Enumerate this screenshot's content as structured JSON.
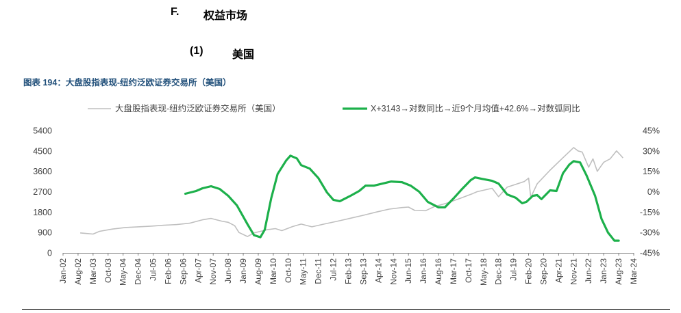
{
  "sections": {
    "s1_number": "F.",
    "s1_title": "权益市场",
    "s2_number": "(1)",
    "s2_title": "美国"
  },
  "figure_title": "图表 194：大盘股指表现-纽约泛欧证券交易所（美国）",
  "colors": {
    "index_series": "#BFBFBF",
    "indicator_series": "#1DB04B",
    "title": "#1F4E79"
  },
  "chart_data": {
    "type": "line",
    "legend_position": "top",
    "grid": false,
    "x_ticks": [
      "Jan-02",
      "Aug-02",
      "Mar-03",
      "Oct-03",
      "May-04",
      "Dec-04",
      "Jul-05",
      "Feb-06",
      "Sep-06",
      "Apr-07",
      "Nov-07",
      "Jun-08",
      "Jan-09",
      "Aug-09",
      "Mar-10",
      "Oct-10",
      "May-11",
      "Dec-11",
      "Jul-12",
      "Feb-13",
      "Sep-13",
      "Apr-14",
      "Nov-14",
      "Jun-15",
      "Jan-16",
      "Aug-16",
      "Mar-17",
      "Oct-17",
      "May-18",
      "Dec-18",
      "Jul-19",
      "Feb-20",
      "Sep-20",
      "Apr-21",
      "Nov-21",
      "Jun-22",
      "Jan-23",
      "Aug-23",
      "Mar-24"
    ],
    "y_left": {
      "ticks": [
        "0",
        "900",
        "1800",
        "2700",
        "3600",
        "4500",
        "5400"
      ],
      "ylim": [
        0,
        5400
      ]
    },
    "y_right": {
      "ticks": [
        "-45%",
        "-30%",
        "-15%",
        "0%",
        "15%",
        "30%",
        "45%"
      ],
      "ylim": [
        -45,
        45
      ]
    },
    "series": [
      {
        "name": "大盘股指表现-纽约泛欧证券交易所（美国）",
        "axis": "left",
        "points": [
          [
            "2002-09",
            880
          ],
          [
            "2003-03",
            830
          ],
          [
            "2003-06",
            950
          ],
          [
            "2003-12",
            1050
          ],
          [
            "2004-06",
            1120
          ],
          [
            "2004-12",
            1150
          ],
          [
            "2005-06",
            1180
          ],
          [
            "2005-12",
            1220
          ],
          [
            "2006-06",
            1250
          ],
          [
            "2006-12",
            1310
          ],
          [
            "2007-06",
            1460
          ],
          [
            "2007-10",
            1520
          ],
          [
            "2008-03",
            1400
          ],
          [
            "2008-06",
            1350
          ],
          [
            "2008-09",
            1200
          ],
          [
            "2008-11",
            900
          ],
          [
            "2009-03",
            720
          ],
          [
            "2009-06",
            880
          ],
          [
            "2009-12",
            1020
          ],
          [
            "2010-04",
            1070
          ],
          [
            "2010-07",
            980
          ],
          [
            "2010-12",
            1160
          ],
          [
            "2011-04",
            1270
          ],
          [
            "2011-09",
            1150
          ],
          [
            "2012-03",
            1280
          ],
          [
            "2012-09",
            1400
          ],
          [
            "2013-03",
            1530
          ],
          [
            "2013-09",
            1660
          ],
          [
            "2014-03",
            1800
          ],
          [
            "2014-09",
            1930
          ],
          [
            "2015-03",
            2000
          ],
          [
            "2015-06",
            2020
          ],
          [
            "2015-09",
            1870
          ],
          [
            "2016-02",
            1860
          ],
          [
            "2016-06",
            2040
          ],
          [
            "2016-12",
            2200
          ],
          [
            "2017-06",
            2400
          ],
          [
            "2017-12",
            2620
          ],
          [
            "2018-02",
            2700
          ],
          [
            "2018-09",
            2850
          ],
          [
            "2018-12",
            2480
          ],
          [
            "2019-04",
            2900
          ],
          [
            "2019-12",
            3150
          ],
          [
            "2020-02",
            3300
          ],
          [
            "2020-03",
            2450
          ],
          [
            "2020-06",
            3050
          ],
          [
            "2020-12",
            3650
          ],
          [
            "2021-06",
            4200
          ],
          [
            "2021-11",
            4650
          ],
          [
            "2022-01",
            4500
          ],
          [
            "2022-03",
            4450
          ],
          [
            "2022-06",
            3780
          ],
          [
            "2022-08",
            4150
          ],
          [
            "2022-10",
            3600
          ],
          [
            "2023-01",
            4000
          ],
          [
            "2023-04",
            4150
          ],
          [
            "2023-07",
            4500
          ],
          [
            "2023-09",
            4300
          ],
          [
            "2023-10",
            4190
          ]
        ]
      },
      {
        "name": "X+3143→对数同比→近9个月均值+42.6%→对数弧同比",
        "axis": "right",
        "points": [
          [
            "2006-10",
            -1.5
          ],
          [
            "2007-03",
            0.5
          ],
          [
            "2007-06",
            2.5
          ],
          [
            "2007-10",
            4.0
          ],
          [
            "2008-02",
            2.0
          ],
          [
            "2008-06",
            -3.0
          ],
          [
            "2008-10",
            -10.0
          ],
          [
            "2009-03",
            -24.0
          ],
          [
            "2009-06",
            -32.0
          ],
          [
            "2009-09",
            -33.5
          ],
          [
            "2009-11",
            -28.0
          ],
          [
            "2010-02",
            -5.0
          ],
          [
            "2010-05",
            13.0
          ],
          [
            "2010-09",
            23.0
          ],
          [
            "2010-11",
            26.5
          ],
          [
            "2011-02",
            24.5
          ],
          [
            "2011-04",
            19.5
          ],
          [
            "2011-08",
            17.0
          ],
          [
            "2011-12",
            10.0
          ],
          [
            "2012-04",
            -0.5
          ],
          [
            "2012-07",
            -6.0
          ],
          [
            "2012-10",
            -7.0
          ],
          [
            "2013-03",
            -3.0
          ],
          [
            "2013-07",
            0.5
          ],
          [
            "2013-10",
            4.5
          ],
          [
            "2014-02",
            4.5
          ],
          [
            "2014-06",
            6.0
          ],
          [
            "2014-10",
            7.5
          ],
          [
            "2015-03",
            7.0
          ],
          [
            "2015-07",
            4.5
          ],
          [
            "2015-11",
            0.0
          ],
          [
            "2016-03",
            -7.5
          ],
          [
            "2016-08",
            -11.5
          ],
          [
            "2016-11",
            -11.5
          ],
          [
            "2017-03",
            -5.0
          ],
          [
            "2017-07",
            2.0
          ],
          [
            "2017-11",
            8.5
          ],
          [
            "2018-01",
            10.5
          ],
          [
            "2018-04",
            9.5
          ],
          [
            "2018-09",
            8.0
          ],
          [
            "2018-12",
            6.0
          ],
          [
            "2019-04",
            -2.0
          ],
          [
            "2019-08",
            -4.5
          ],
          [
            "2019-11",
            -8.5
          ],
          [
            "2020-01",
            -7.5
          ],
          [
            "2020-04",
            -3.0
          ],
          [
            "2020-06",
            -2.5
          ],
          [
            "2020-08",
            -5.5
          ],
          [
            "2020-12",
            1.0
          ],
          [
            "2021-03",
            0.5
          ],
          [
            "2021-06",
            13.5
          ],
          [
            "2021-09",
            20.0
          ],
          [
            "2021-11",
            22.5
          ],
          [
            "2022-02",
            21.5
          ],
          [
            "2022-05",
            12.0
          ],
          [
            "2022-09",
            -3.0
          ],
          [
            "2022-12",
            -20.0
          ],
          [
            "2023-03",
            -30.0
          ],
          [
            "2023-06",
            -36.0
          ],
          [
            "2023-08",
            -36.0
          ]
        ]
      }
    ]
  }
}
